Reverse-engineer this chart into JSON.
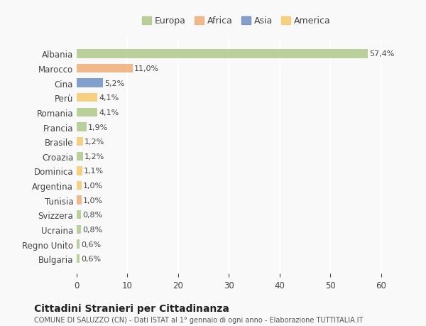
{
  "countries": [
    "Albania",
    "Marocco",
    "Cina",
    "Perù",
    "Romania",
    "Francia",
    "Brasile",
    "Croazia",
    "Dominica",
    "Argentina",
    "Tunisia",
    "Svizzera",
    "Ucraina",
    "Regno Unito",
    "Bulgaria"
  ],
  "values": [
    57.4,
    11.0,
    5.2,
    4.1,
    4.1,
    1.9,
    1.2,
    1.2,
    1.1,
    1.0,
    1.0,
    0.8,
    0.8,
    0.6,
    0.6
  ],
  "labels": [
    "57,4%",
    "11,0%",
    "5,2%",
    "4,1%",
    "4,1%",
    "1,9%",
    "1,2%",
    "1,2%",
    "1,1%",
    "1,0%",
    "1,0%",
    "0,8%",
    "0,8%",
    "0,6%",
    "0,6%"
  ],
  "colors": [
    "#aec98a",
    "#f0ad78",
    "#6e8fc4",
    "#f5cb6a",
    "#aec98a",
    "#aec98a",
    "#f5cb6a",
    "#aec98a",
    "#f5cb6a",
    "#f5cb6a",
    "#f0ad78",
    "#aec98a",
    "#aec98a",
    "#aec98a",
    "#aec98a"
  ],
  "legend_labels": [
    "Europa",
    "Africa",
    "Asia",
    "America"
  ],
  "legend_colors": [
    "#aec98a",
    "#f0ad78",
    "#6e8fc4",
    "#f5cb6a"
  ],
  "title": "Cittadini Stranieri per Cittadinanza",
  "subtitle": "COMUNE DI SALUZZO (CN) - Dati ISTAT al 1° gennaio di ogni anno - Elaborazione TUTTITALIA.IT",
  "xlim": [
    0,
    63
  ],
  "xticks": [
    0,
    10,
    20,
    30,
    40,
    50,
    60
  ],
  "background_color": "#f9f9f9",
  "grid_color": "#ffffff",
  "bar_alpha": 0.85
}
